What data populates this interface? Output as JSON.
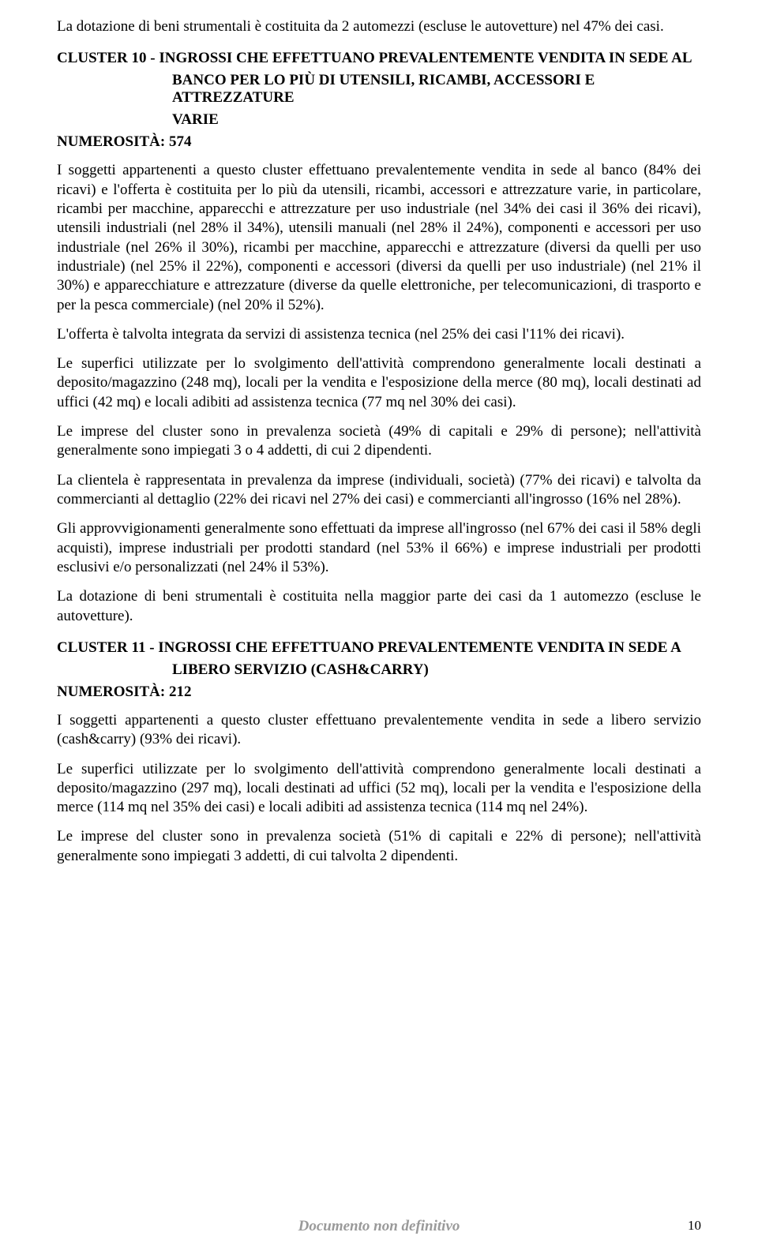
{
  "intro": {
    "p1": "La dotazione di beni strumentali è costituita da 2 automezzi (escluse le autovetture) nel 47% dei casi."
  },
  "cluster10": {
    "title_line1": "CLUSTER 10  -  INGROSSI CHE EFFETTUANO PREVALENTEMENTE VENDITA IN SEDE AL",
    "title_line2": "BANCO PER LO PIÙ DI UTENSILI, RICAMBI, ACCESSORI E ATTREZZATURE",
    "title_line3": "VARIE",
    "numerosita": "NUMEROSITÀ: 574",
    "p1": "I soggetti appartenenti a questo cluster effettuano prevalentemente vendita in sede al banco (84% dei ricavi) e l'offerta è costituita per lo più da utensili, ricambi, accessori e attrezzature varie, in particolare, ricambi per macchine, apparecchi e attrezzature per uso industriale (nel 34% dei casi il 36% dei ricavi), utensili industriali (nel 28% il 34%), utensili manuali (nel 28% il 24%), componenti e accessori per uso industriale (nel 26% il 30%), ricambi per macchine, apparecchi e attrezzature (diversi da quelli per uso industriale) (nel 25% il 22%), componenti e accessori (diversi da quelli per uso industriale) (nel 21% il 30%) e apparecchiature e attrezzature (diverse da quelle elettroniche, per telecomunicazioni, di trasporto e per la pesca commerciale) (nel 20% il 52%).",
    "p2": "L'offerta è talvolta integrata da servizi di assistenza tecnica (nel 25% dei casi l'11% dei ricavi).",
    "p3": "Le superfici utilizzate per lo svolgimento dell'attività comprendono generalmente locali destinati a deposito/magazzino (248 mq), locali per la vendita e l'esposizione della merce (80 mq), locali destinati ad uffici (42 mq) e locali adibiti ad assistenza tecnica (77 mq nel 30% dei casi).",
    "p4": "Le imprese del cluster sono in prevalenza società (49% di capitali e 29% di persone); nell'attività generalmente sono impiegati 3 o 4 addetti, di cui 2 dipendenti.",
    "p5": "La clientela è rappresentata in prevalenza da imprese (individuali, società) (77% dei ricavi) e talvolta da commercianti al dettaglio (22% dei ricavi nel 27% dei casi) e commercianti all'ingrosso (16% nel 28%).",
    "p6": "Gli approvvigionamenti generalmente sono effettuati da imprese all'ingrosso (nel 67% dei casi il 58% degli acquisti), imprese industriali per prodotti standard (nel 53% il 66%) e imprese industriali per prodotti esclusivi e/o personalizzati (nel 24% il 53%).",
    "p7": "La dotazione di beni strumentali è costituita nella maggior parte dei casi da 1 automezzo (escluse le autovetture)."
  },
  "cluster11": {
    "title_line1": "CLUSTER 11  -  INGROSSI CHE EFFETTUANO PREVALENTEMENTE VENDITA IN SEDE A",
    "title_line2": "LIBERO SERVIZIO (CASH&CARRY)",
    "numerosita": "NUMEROSITÀ: 212",
    "p1": "I soggetti appartenenti a questo cluster effettuano prevalentemente vendita in sede a libero servizio (cash&carry) (93% dei ricavi).",
    "p2": "Le superfici utilizzate per lo svolgimento dell'attività comprendono generalmente locali destinati a deposito/magazzino (297 mq), locali destinati ad uffici (52 mq), locali per la vendita e l'esposizione della merce (114 mq nel 35% dei casi) e locali adibiti ad assistenza tecnica (114 mq nel 24%).",
    "p3": "Le imprese del cluster sono in prevalenza società (51% di capitali e 22% di persone); nell'attività generalmente sono impiegati 3 addetti, di cui talvolta 2 dipendenti."
  },
  "footer": {
    "center": "Documento non definitivo",
    "page": "10"
  }
}
